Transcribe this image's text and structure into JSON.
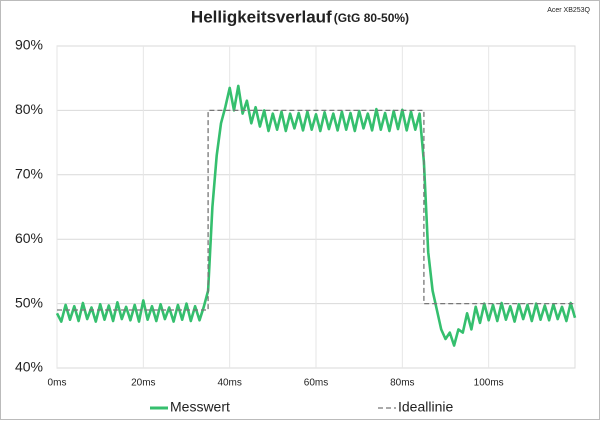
{
  "chart_data": {
    "type": "line",
    "title": "Helligkeitsverlauf",
    "subtitle": "(GtG 80-50%)",
    "annotation": "Acer XB253Q",
    "x": [
      0,
      1,
      2,
      3,
      4,
      5,
      6,
      7,
      8,
      9,
      10,
      11,
      12,
      13,
      14,
      15,
      16,
      17,
      18,
      19,
      20,
      21,
      22,
      23,
      24,
      25,
      26,
      27,
      28,
      29,
      30,
      31,
      32,
      33,
      34,
      35,
      36,
      37,
      38,
      39,
      40,
      41,
      42,
      43,
      44,
      45,
      46,
      47,
      48,
      49,
      50,
      51,
      52,
      53,
      54,
      55,
      56,
      57,
      58,
      59,
      60,
      61,
      62,
      63,
      64,
      65,
      66,
      67,
      68,
      69,
      70,
      71,
      72,
      73,
      74,
      75,
      76,
      77,
      78,
      79,
      80,
      81,
      82,
      83,
      84,
      85,
      86,
      87,
      88,
      89,
      90,
      91,
      92,
      93,
      94,
      95,
      96,
      97,
      98,
      99,
      100,
      101,
      102,
      103,
      104,
      105,
      106,
      107,
      108,
      109,
      110,
      111,
      112,
      113,
      114,
      115,
      116,
      117,
      118,
      119,
      120
    ],
    "series": [
      {
        "name": "Messwert",
        "color": "#35bf6e",
        "style": "solid",
        "values": [
          48.5,
          47.2,
          49.8,
          47.5,
          49.6,
          47.3,
          50.1,
          47.6,
          49.4,
          47.2,
          49.9,
          47.5,
          49.7,
          47.3,
          50.2,
          47.6,
          49.5,
          47.4,
          49.8,
          47.2,
          50.5,
          47.5,
          49.6,
          47.3,
          49.9,
          47.6,
          49.4,
          47.2,
          49.8,
          47.5,
          50.0,
          47.3,
          49.6,
          47.4,
          49.5,
          52,
          65,
          73,
          78,
          80.5,
          83.5,
          80,
          83.8,
          79.5,
          81.5,
          78,
          80.5,
          77.5,
          80,
          76.8,
          79.5,
          77,
          79.8,
          76.8,
          79.5,
          77.2,
          79.6,
          76.9,
          79.8,
          77,
          79.4,
          76.8,
          79.7,
          77.1,
          79.5,
          76.9,
          79.8,
          77,
          79.6,
          76.8,
          79.9,
          77.2,
          79.5,
          76.9,
          80.2,
          77,
          79.6,
          76.8,
          79.9,
          77.1,
          80.1,
          76.9,
          79.8,
          77,
          79.5,
          72,
          58,
          52,
          49,
          46,
          44.5,
          45.5,
          43.5,
          46,
          45.5,
          48.5,
          46,
          49.5,
          47,
          50,
          47.4,
          49.8,
          47.3,
          50.1,
          47.5,
          49.6,
          47.2,
          49.9,
          47.6,
          49.8,
          47.3,
          50.0,
          47.5,
          49.7,
          47.4,
          49.9,
          47.6,
          49.5,
          47.3,
          50.1,
          47.8
        ]
      },
      {
        "name": "Ideallinie",
        "color": "#777777",
        "style": "dashed",
        "x": [
          0,
          35,
          35,
          85,
          85,
          120
        ],
        "values": [
          49,
          49,
          80,
          80,
          50,
          50
        ]
      }
    ],
    "xlim": [
      0,
      120
    ],
    "xticks": [
      {
        "value": 0,
        "label": "0ms"
      },
      {
        "value": 20,
        "label": "20ms"
      },
      {
        "value": 40,
        "label": "40ms"
      },
      {
        "value": 60,
        "label": "60ms"
      },
      {
        "value": 80,
        "label": "80ms"
      },
      {
        "value": 100,
        "label": "100ms"
      }
    ],
    "ylim": [
      40,
      90
    ],
    "yticks": [
      {
        "value": 40,
        "label": "40%"
      },
      {
        "value": 50,
        "label": "50%"
      },
      {
        "value": 60,
        "label": "60%"
      },
      {
        "value": 70,
        "label": "70%"
      },
      {
        "value": 80,
        "label": "80%"
      },
      {
        "value": 90,
        "label": "90%"
      }
    ],
    "grid": true,
    "legend": "bottom"
  }
}
